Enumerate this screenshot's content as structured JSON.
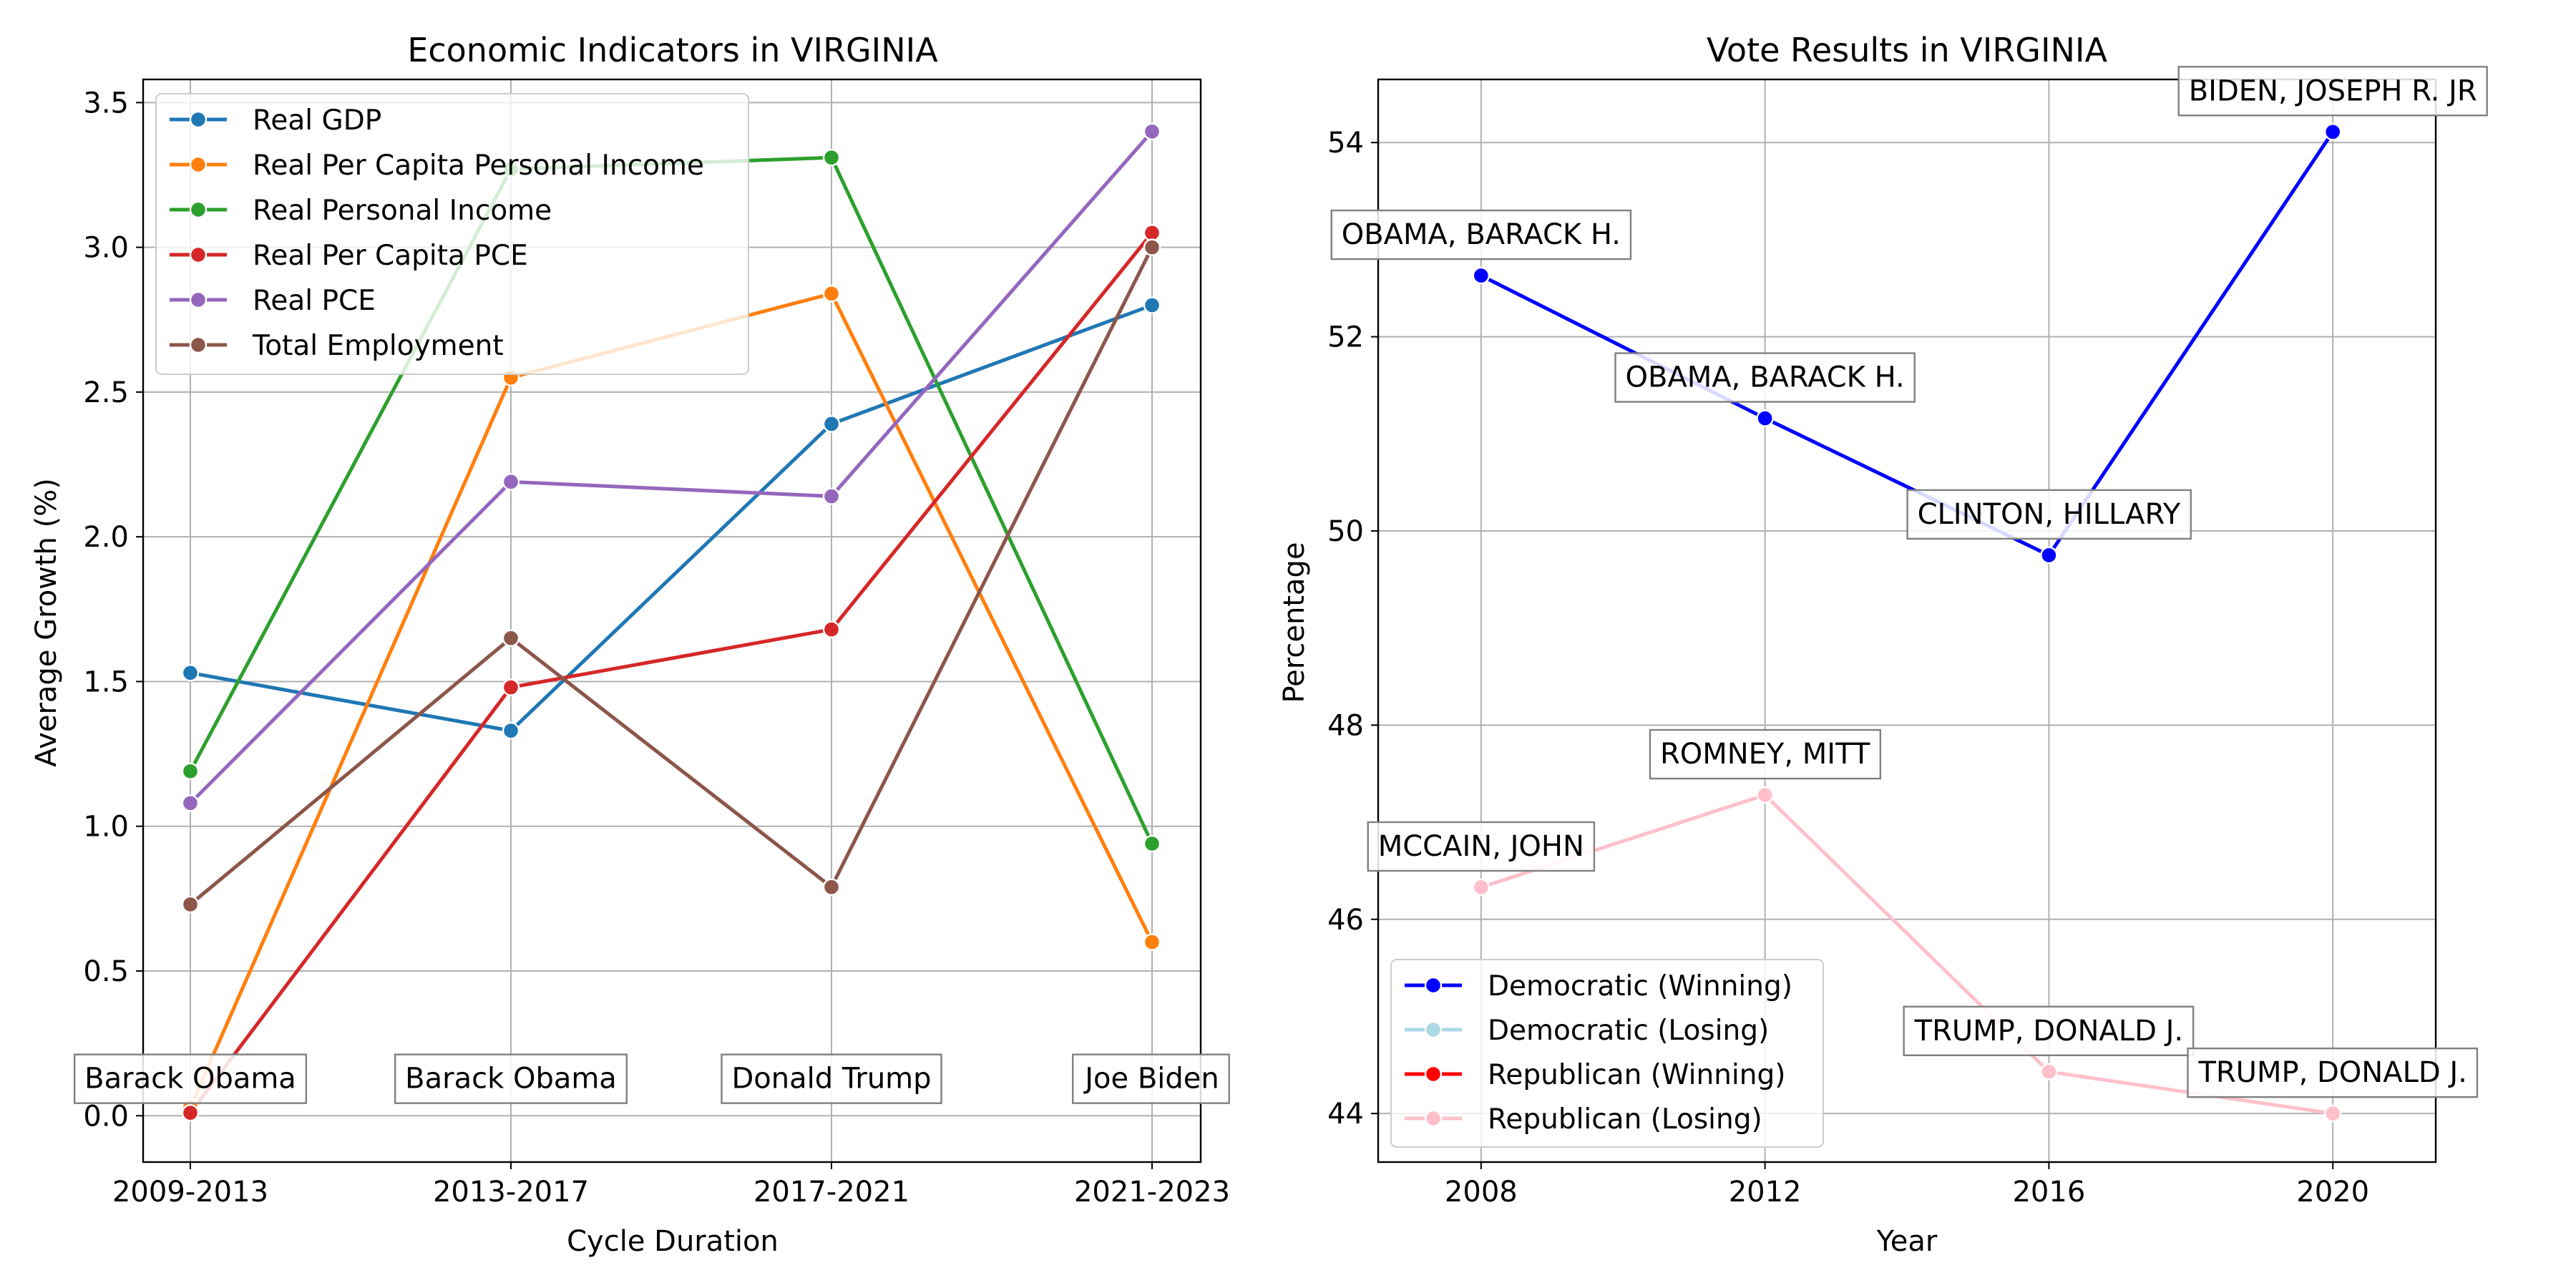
{
  "chart_data": [
    {
      "type": "line",
      "title": "Economic Indicators in VIRGINIA",
      "xlabel": "Cycle Duration",
      "ylabel": "Average Growth (%)",
      "categories": [
        "2009-2013",
        "2013-2017",
        "2017-2021",
        "2021-2023"
      ],
      "ylim": [
        -0.16,
        3.58
      ],
      "yticks": [
        0.0,
        0.5,
        1.0,
        1.5,
        2.0,
        2.5,
        3.0,
        3.5
      ],
      "grid": true,
      "legend_position": "upper left",
      "series": [
        {
          "name": "Real GDP",
          "color": "#1f77b4",
          "values": [
            1.53,
            1.33,
            2.39,
            2.8
          ]
        },
        {
          "name": "Real Per Capita Personal Income",
          "color": "#ff7f0e",
          "values": [
            0.03,
            2.55,
            2.84,
            0.6
          ]
        },
        {
          "name": "Real Personal Income",
          "color": "#2ca02c",
          "values": [
            1.19,
            3.27,
            3.31,
            0.94
          ]
        },
        {
          "name": "Real Per Capita PCE",
          "color": "#d62728",
          "values": [
            0.01,
            1.48,
            1.68,
            3.05
          ]
        },
        {
          "name": "Real PCE",
          "color": "#9467bd",
          "values": [
            1.08,
            2.19,
            2.14,
            3.4
          ]
        },
        {
          "name": "Total Employment",
          "color": "#8c564b",
          "values": [
            0.73,
            1.65,
            0.79,
            3.0
          ]
        }
      ],
      "annotations": [
        {
          "category": "2009-2013",
          "text": "Barack Obama"
        },
        {
          "category": "2013-2017",
          "text": "Barack Obama"
        },
        {
          "category": "2017-2021",
          "text": "Donald Trump"
        },
        {
          "category": "2021-2023",
          "text": "Joe Biden"
        }
      ]
    },
    {
      "type": "line",
      "title": "Vote Results in VIRGINIA",
      "xlabel": "Year",
      "ylabel": "Percentage",
      "x": [
        2008,
        2012,
        2016,
        2020
      ],
      "xticks": [
        2008,
        2012,
        2016,
        2020
      ],
      "xlim": [
        2006.55,
        2021.45
      ],
      "ylim": [
        43.5,
        54.65
      ],
      "yticks": [
        44,
        46,
        48,
        50,
        52,
        54
      ],
      "grid": true,
      "legend_position": "lower left",
      "legend": [
        {
          "name": "Democratic (Winning)",
          "color": "#0000ff"
        },
        {
          "name": "Democratic (Losing)",
          "color": "#add8e6"
        },
        {
          "name": "Republican (Winning)",
          "color": "#ff0000"
        },
        {
          "name": "Republican (Losing)",
          "color": "#ffc0cb"
        }
      ],
      "series": [
        {
          "name": "Democratic",
          "color": "#0000ff",
          "values": [
            52.63,
            51.16,
            49.75,
            54.11
          ]
        },
        {
          "name": "Republican",
          "color": "#ffc0cb",
          "values": [
            46.33,
            47.28,
            44.43,
            44.0
          ]
        }
      ],
      "point_markers": [
        {
          "series": 0,
          "colors": [
            "#0000ff",
            "#0000ff",
            "#0000ff",
            "#0000ff"
          ]
        },
        {
          "series": 1,
          "colors": [
            "#ffc0cb",
            "#ffc0cb",
            "#ffc0cb",
            "#ffc0cb"
          ]
        }
      ],
      "annotations": [
        {
          "x": 2008,
          "y": 52.63,
          "text": "OBAMA, BARACK H."
        },
        {
          "x": 2012,
          "y": 51.16,
          "text": "OBAMA, BARACK H."
        },
        {
          "x": 2016,
          "y": 49.75,
          "text": "CLINTON, HILLARY"
        },
        {
          "x": 2020,
          "y": 54.11,
          "text": "BIDEN, JOSEPH R. JR"
        },
        {
          "x": 2008,
          "y": 46.33,
          "text": "MCCAIN, JOHN"
        },
        {
          "x": 2012,
          "y": 47.28,
          "text": "ROMNEY, MITT"
        },
        {
          "x": 2016,
          "y": 44.43,
          "text": "TRUMP, DONALD J."
        },
        {
          "x": 2020,
          "y": 44.0,
          "text": "TRUMP, DONALD J."
        }
      ]
    }
  ]
}
